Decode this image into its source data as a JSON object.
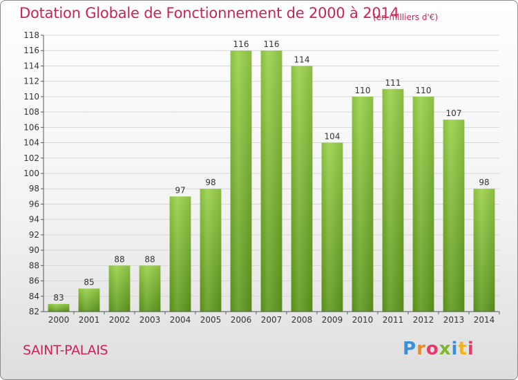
{
  "title": "Dotation Globale de Fonctionnement de 2000 à 2014",
  "unit_note": "(en milliers d'€)",
  "commune": "SAINT-PALAIS",
  "brand": {
    "letters": [
      "P",
      "r",
      "o",
      "x",
      "i",
      "t",
      "i"
    ]
  },
  "colors": {
    "title": "#cc2255",
    "bar_top": "#9ad14a",
    "bar_bottom": "#5f9a1e"
  },
  "chart_data": {
    "type": "bar",
    "title": "Dotation Globale de Fonctionnement de 2000 à 2014",
    "categories": [
      "2000",
      "2001",
      "2002",
      "2003",
      "2004",
      "2005",
      "2006",
      "2007",
      "2008",
      "2009",
      "2010",
      "2011",
      "2012",
      "2013",
      "2014"
    ],
    "values": [
      83,
      85,
      88,
      88,
      97,
      98,
      116,
      116,
      114,
      104,
      110,
      111,
      110,
      107,
      98
    ],
    "ylim": [
      82,
      118
    ],
    "yticks": [
      82,
      84,
      86,
      88,
      90,
      92,
      94,
      96,
      98,
      100,
      102,
      104,
      106,
      108,
      110,
      112,
      114,
      116,
      118
    ],
    "grid": true
  }
}
